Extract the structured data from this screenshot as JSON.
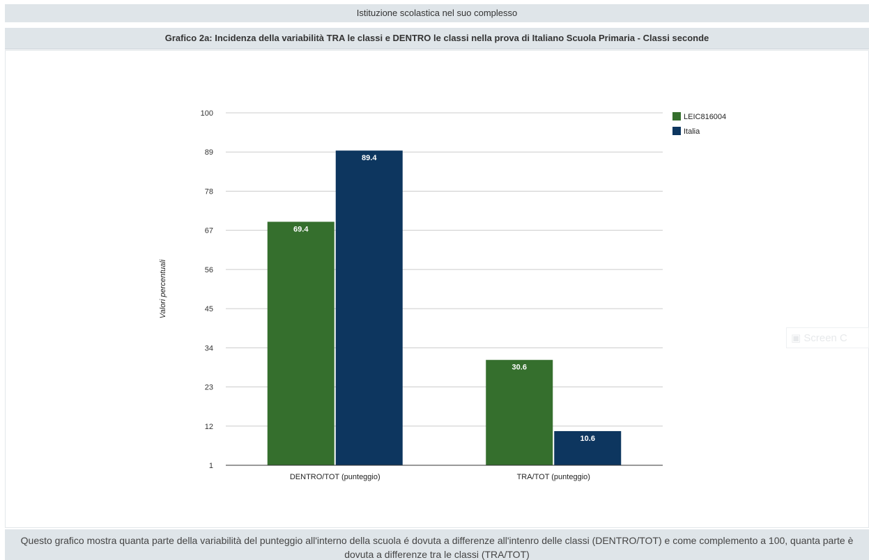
{
  "header": {
    "section_title": "Istituzione scolastica nel suo complesso",
    "chart_title": "Grafico 2a: Incidenza della variabilità TRA le classi e DENTRO le classi nella prova di Italiano Scuola Primaria - Classi seconde"
  },
  "watermark": {
    "text": "Screen C"
  },
  "footer": {
    "text": "Questo grafico mostra quanta parte della variabilità del punteggio all'interno della scuola é dovuta a differenze all'intenro delle classi (DENTRO/TOT) e come complemento a 100, quanta parte è dovuta a differenze tra le classi (TRA/TOT)"
  },
  "chart_data": {
    "type": "bar",
    "ylabel": "Valori percentuali",
    "xlabel": "",
    "ylim": [
      1,
      100
    ],
    "yticks": [
      1,
      12,
      23,
      34,
      45,
      56,
      67,
      78,
      89,
      100
    ],
    "categories": [
      "DENTRO/TOT (punteggio)",
      "TRA/TOT (punteggio)"
    ],
    "series": [
      {
        "name": "LEIC816004",
        "values": [
          69.4,
          30.6
        ],
        "color": "#356f2d"
      },
      {
        "name": "Italia",
        "values": [
          89.4,
          10.6
        ],
        "color": "#0d365f"
      }
    ],
    "legend": "top-right",
    "grid": true
  }
}
